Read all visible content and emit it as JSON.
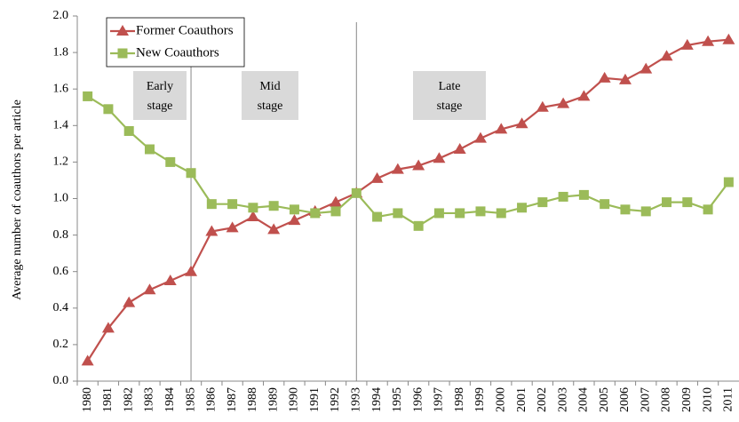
{
  "chart_data": {
    "type": "line",
    "y_label": "Average number of coauthors per article",
    "categories": [
      "1980",
      "1981",
      "1982",
      "1983",
      "1984",
      "1985",
      "1986",
      "1987",
      "1988",
      "1989",
      "1990",
      "1991",
      "1992",
      "1993",
      "1994",
      "1995",
      "1996",
      "1997",
      "1998",
      "1999",
      "2000",
      "2001",
      "2002",
      "2003",
      "2004",
      "2005",
      "2006",
      "2007",
      "2008",
      "2009",
      "2010",
      "2011"
    ],
    "series": [
      {
        "name": "Former Coauthors",
        "color": "#c0504d",
        "marker": "triangle",
        "values": [
          0.11,
          0.29,
          0.43,
          0.5,
          0.55,
          0.6,
          0.82,
          0.84,
          0.9,
          0.83,
          0.88,
          0.93,
          0.98,
          1.03,
          1.11,
          1.16,
          1.18,
          1.22,
          1.27,
          1.33,
          1.38,
          1.41,
          1.5,
          1.52,
          1.56,
          1.66,
          1.65,
          1.71,
          1.78,
          1.84,
          1.86,
          1.87
        ]
      },
      {
        "name": "New Coauthors",
        "color": "#9bbb59",
        "marker": "square",
        "values": [
          1.56,
          1.49,
          1.37,
          1.27,
          1.2,
          1.14,
          0.97,
          0.97,
          0.95,
          0.96,
          0.94,
          0.92,
          0.93,
          1.03,
          0.9,
          0.92,
          0.85,
          0.92,
          0.92,
          0.93,
          0.92,
          0.95,
          0.98,
          1.01,
          1.02,
          0.97,
          0.94,
          0.93,
          0.98,
          0.98,
          0.94,
          1.09
        ]
      }
    ],
    "annotations": [
      [
        "Early",
        "stage"
      ],
      [
        "Mid",
        "stage"
      ],
      [
        "Late",
        "stage"
      ]
    ],
    "ylim": [
      0,
      2
    ],
    "yticks": [
      {
        "value": 0,
        "label": "0.0"
      },
      {
        "value": 0.2,
        "label": "0.2"
      },
      {
        "value": 0.4,
        "label": "0.4"
      },
      {
        "value": 0.6,
        "label": "0.6"
      },
      {
        "value": 0.8,
        "label": "0.8"
      },
      {
        "value": 1,
        "label": "1.0"
      },
      {
        "value": 1.2,
        "label": "1.2"
      },
      {
        "value": 1.4,
        "label": "1.4"
      },
      {
        "value": 1.6,
        "label": "1.6"
      },
      {
        "value": 1.8,
        "label": "1.8"
      },
      {
        "value": 2,
        "label": "2.0"
      }
    ],
    "legend": "upper left"
  }
}
